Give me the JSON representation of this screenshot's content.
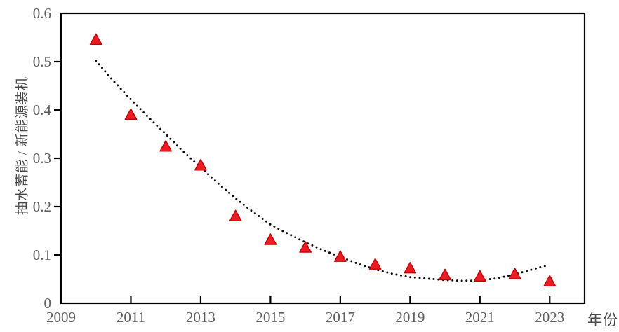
{
  "chart_data": {
    "type": "scatter",
    "title": "",
    "xlabel": "年份",
    "ylabel": "抽水蓄能 / 新能源装机",
    "xlim": [
      2009,
      2024
    ],
    "ylim": [
      0,
      0.6
    ],
    "grid": false,
    "legend": "none",
    "x_ticks": {
      "values": [
        2009,
        2011,
        2013,
        2015,
        2017,
        2019,
        2021,
        2023
      ],
      "labels": [
        "2009",
        "2011",
        "2013",
        "2015",
        "2017",
        "2019",
        "2021",
        "2023"
      ]
    },
    "y_ticks": {
      "values": [
        0,
        0.1,
        0.2,
        0.3,
        0.4,
        0.5,
        0.6
      ],
      "labels": [
        "0",
        "0.1",
        "0.2",
        "0.3",
        "0.4",
        "0.5",
        "0.6"
      ]
    },
    "series": [
      {
        "marker": "triangle-up",
        "marker_fill": "#ed1c24",
        "marker_edge": "#c40000",
        "x": [
          2010,
          2011,
          2012,
          2013,
          2014,
          2015,
          2016,
          2017,
          2018,
          2019,
          2020,
          2021,
          2022,
          2023
        ],
        "y": [
          0.545,
          0.39,
          0.324,
          0.285,
          0.18,
          0.131,
          0.115,
          0.096,
          0.08,
          0.072,
          0.058,
          0.055,
          0.06,
          0.045
        ]
      }
    ],
    "trendline": {
      "style": "dotted",
      "color": "#0a0a0a",
      "points": [
        [
          2010.0,
          0.502
        ],
        [
          2010.5,
          0.46
        ],
        [
          2011.0,
          0.422
        ],
        [
          2011.5,
          0.385
        ],
        [
          2012.0,
          0.35
        ],
        [
          2012.5,
          0.314
        ],
        [
          2013.0,
          0.281
        ],
        [
          2013.5,
          0.248
        ],
        [
          2014.0,
          0.217
        ],
        [
          2014.5,
          0.189
        ],
        [
          2015.0,
          0.163
        ],
        [
          2015.5,
          0.144
        ],
        [
          2016.0,
          0.126
        ],
        [
          2016.5,
          0.11
        ],
        [
          2017.0,
          0.096
        ],
        [
          2017.5,
          0.082
        ],
        [
          2018.0,
          0.07
        ],
        [
          2018.5,
          0.061
        ],
        [
          2019.0,
          0.054
        ],
        [
          2019.5,
          0.051
        ],
        [
          2020.0,
          0.048
        ],
        [
          2020.5,
          0.0465
        ],
        [
          2021.0,
          0.047
        ],
        [
          2021.5,
          0.052
        ],
        [
          2022.0,
          0.06
        ],
        [
          2022.5,
          0.07
        ],
        [
          2022.95,
          0.079
        ]
      ]
    }
  },
  "style": {
    "axis_color": "#000000",
    "tick_label_color": "#606060",
    "background": "#ffffff"
  }
}
